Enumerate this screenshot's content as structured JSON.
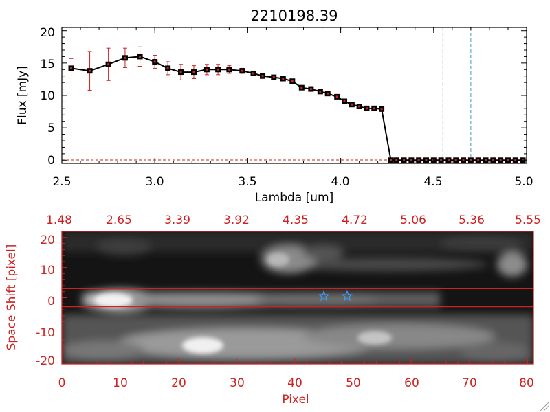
{
  "chart_data": [
    {
      "type": "line",
      "title": "2210198.39",
      "xlabel": "Lambda [um]",
      "ylabel": "Flux [mJy]",
      "xlim": [
        2.5,
        5.0
      ],
      "ylim": [
        -0.5,
        20.5
      ],
      "xticks": [
        "2.5",
        "3.0",
        "3.5",
        "4.0",
        "4.5",
        "5.0"
      ],
      "yticks": [
        "0",
        "5",
        "10",
        "15",
        "20"
      ],
      "series": [
        {
          "name": "flux",
          "color": "#000000",
          "errorbar_color": "#cc2222",
          "x": [
            2.55,
            2.65,
            2.75,
            2.84,
            2.92,
            3.0,
            3.07,
            3.14,
            3.21,
            3.28,
            3.34,
            3.4,
            3.47,
            3.53,
            3.58,
            3.64,
            3.69,
            3.74,
            3.79,
            3.84,
            3.89,
            3.93,
            3.98,
            4.02,
            4.06,
            4.1,
            4.14,
            4.18,
            4.22,
            4.27,
            4.3,
            4.34,
            4.38,
            4.42,
            4.46,
            4.5,
            4.54,
            4.58,
            4.62,
            4.66,
            4.7,
            4.74,
            4.78,
            4.82,
            4.86,
            4.9,
            4.94,
            4.98
          ],
          "y": [
            14.2,
            13.8,
            14.8,
            15.8,
            16.0,
            15.2,
            14.2,
            13.6,
            13.6,
            14.0,
            14.0,
            14.0,
            13.8,
            13.4,
            13.0,
            12.8,
            12.6,
            12.2,
            11.2,
            11.0,
            10.6,
            10.3,
            9.8,
            9.1,
            8.6,
            8.3,
            8.0,
            8.0,
            7.9,
            0,
            0,
            0,
            0,
            0,
            0,
            0,
            0,
            0,
            0,
            0,
            0,
            0,
            0,
            0,
            0,
            0,
            0,
            0
          ],
          "yerr": [
            1.5,
            3.0,
            2.5,
            1.5,
            1.5,
            1.0,
            1.0,
            1.2,
            1.0,
            0.8,
            0.8,
            0.6,
            0.4,
            0.3,
            0.3,
            0.3,
            0.3,
            0.3,
            0.3,
            0.3,
            0.3,
            0.3,
            0.3,
            0.3,
            0.3,
            0.3,
            0.3,
            0.3,
            0.3,
            0,
            0,
            0,
            0,
            0,
            0,
            0,
            0,
            0,
            0,
            0,
            0,
            0,
            0,
            0,
            0,
            0,
            0,
            0
          ]
        }
      ],
      "vlines": [
        4.55,
        4.7
      ],
      "vline_color": "#3aa0c8",
      "zero_line_color": "#cc2222"
    },
    {
      "type": "heatmap",
      "xlabel": "Pixel",
      "ylabel": "Space Shift [pixel]",
      "xlim": [
        0,
        81
      ],
      "ylim": [
        -22,
        22
      ],
      "xticks": [
        "0",
        "10",
        "20",
        "30",
        "40",
        "50",
        "60",
        "70",
        "80"
      ],
      "yticks": [
        "-20",
        "-10",
        "0",
        "10",
        "20"
      ],
      "top_axis_ticks": [
        "1.48",
        "2.65",
        "3.39",
        "3.92",
        "4.35",
        "4.72",
        "5.06",
        "5.36",
        "5.55"
      ],
      "axis_color": "#cc2222",
      "extraction_band": [
        -3,
        3
      ],
      "markers": [
        {
          "name": "marker-1",
          "x": 45,
          "y": 0.5
        },
        {
          "name": "marker-2",
          "x": 49,
          "y": 0.5
        }
      ],
      "marker_color": "#3aa0ff"
    }
  ]
}
